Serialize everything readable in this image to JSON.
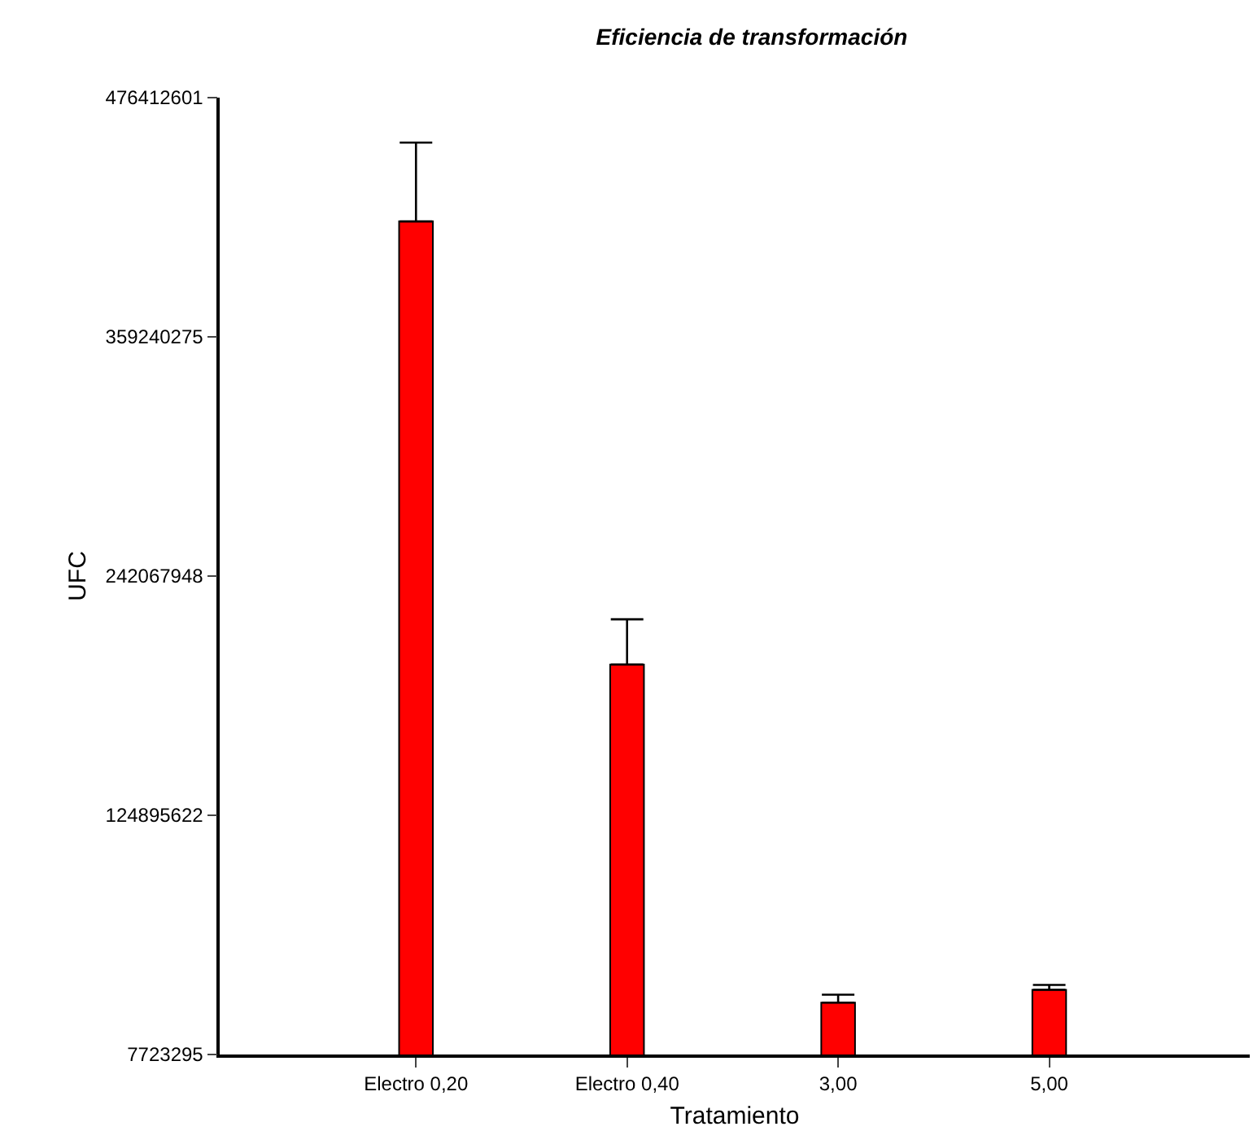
{
  "chart_data": {
    "type": "bar",
    "title": "Eficiencia de transformación",
    "xlabel": "Tratamiento",
    "ylabel": "UFC",
    "categories": [
      "Electro 0,20",
      "Electro 0,40",
      "3,00",
      "5,00"
    ],
    "values": [
      415800000,
      198700000,
      33100000,
      39400000
    ],
    "errors": [
      [
        415800000,
        454400000
      ],
      [
        198700000,
        220900000
      ],
      [
        33100000,
        37000000
      ],
      [
        39400000,
        41800000
      ]
    ],
    "color": "#ff0000",
    "ylim": [
      7723295,
      476412601
    ],
    "yticks": [
      7723295,
      124895622,
      242067948,
      359240275,
      476412601
    ]
  }
}
